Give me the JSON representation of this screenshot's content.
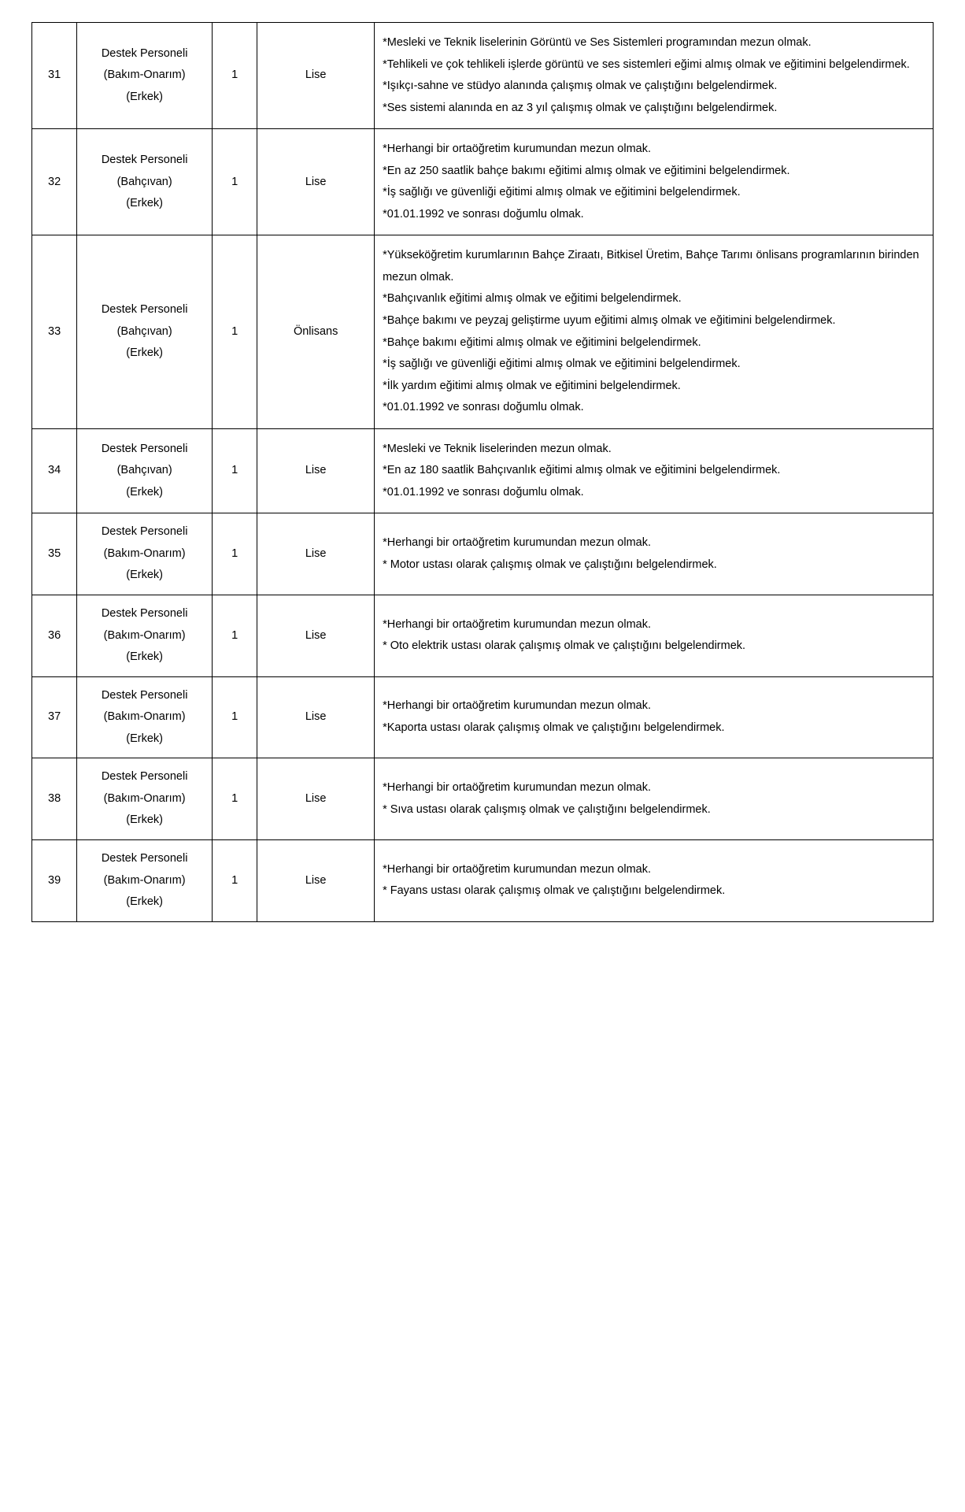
{
  "columns": [
    "idx",
    "title",
    "count",
    "level",
    "requirements"
  ],
  "col_widths_pct": [
    5,
    15,
    5,
    13,
    62
  ],
  "border_color": "#000000",
  "background_color": "#ffffff",
  "text_color": "#000000",
  "font_size_pt": 11,
  "line_height": 1.9,
  "rows": [
    {
      "idx": "31",
      "title": [
        "Destek Personeli",
        "(Bakım-Onarım)",
        "(Erkek)"
      ],
      "count": "1",
      "level": "Lise",
      "requirements": [
        "*Mesleki ve Teknik liselerinin Görüntü ve Ses Sistemleri programından mezun olmak.",
        "*Tehlikeli ve çok tehlikeli işlerde görüntü ve ses sistemleri eğimi almış olmak ve eğitimini belgelendirmek.",
        "*Işıkçı-sahne ve stüdyo alanında çalışmış olmak ve çalıştığını belgelendirmek.",
        "*Ses sistemi alanında en az 3 yıl çalışmış olmak ve çalıştığını belgelendirmek."
      ]
    },
    {
      "idx": "32",
      "title": [
        "Destek Personeli",
        "(Bahçıvan)",
        "(Erkek)"
      ],
      "count": "1",
      "level": "Lise",
      "requirements": [
        "*Herhangi bir ortaöğretim kurumundan mezun olmak.",
        "*En az 250 saatlik bahçe bakımı eğitimi almış olmak ve eğitimini belgelendirmek.",
        "*İş sağlığı ve güvenliği eğitimi almış olmak ve eğitimini belgelendirmek.",
        "*01.01.1992 ve sonrası doğumlu olmak."
      ]
    },
    {
      "idx": "33",
      "title": [
        "Destek Personeli",
        "(Bahçıvan)",
        "(Erkek)"
      ],
      "count": "1",
      "level": "Önlisans",
      "requirements": [
        "*Yükseköğretim kurumlarının Bahçe Ziraatı, Bitkisel Üretim, Bahçe Tarımı önlisans programlarının birinden mezun olmak.",
        "*Bahçıvanlık eğitimi almış olmak ve eğitimi belgelendirmek.",
        "*Bahçe bakımı ve peyzaj geliştirme uyum eğitimi almış olmak ve eğitimini belgelendirmek.",
        "*Bahçe bakımı eğitimi almış olmak ve eğitimini belgelendirmek.",
        "*İş sağlığı ve güvenliği eğitimi almış olmak ve eğitimini belgelendirmek.",
        "*İlk yardım eğitimi almış olmak ve eğitimini belgelendirmek.",
        "*01.01.1992 ve sonrası doğumlu olmak."
      ]
    },
    {
      "idx": "34",
      "title": [
        "Destek Personeli",
        "(Bahçıvan)",
        "(Erkek)"
      ],
      "count": "1",
      "level": "Lise",
      "requirements": [
        "*Mesleki ve Teknik liselerinden mezun olmak.",
        "*En az 180 saatlik Bahçıvanlık eğitimi almış olmak ve eğitimini belgelendirmek.",
        "*01.01.1992 ve sonrası doğumlu olmak."
      ]
    },
    {
      "idx": "35",
      "title": [
        "Destek Personeli",
        "(Bakım-Onarım)",
        "(Erkek)"
      ],
      "count": "1",
      "level": "Lise",
      "requirements": [
        "*Herhangi bir ortaöğretim kurumundan mezun olmak.",
        "* Motor ustası olarak çalışmış olmak ve çalıştığını belgelendirmek."
      ]
    },
    {
      "idx": "36",
      "title": [
        "Destek Personeli",
        "(Bakım-Onarım)",
        "(Erkek)"
      ],
      "count": "1",
      "level": "Lise",
      "requirements": [
        "*Herhangi bir ortaöğretim kurumundan mezun olmak.",
        "* Oto elektrik ustası olarak çalışmış olmak ve çalıştığını belgelendirmek."
      ]
    },
    {
      "idx": "37",
      "title": [
        "Destek Personeli",
        "(Bakım-Onarım)",
        "(Erkek)"
      ],
      "count": "1",
      "level": "Lise",
      "requirements": [
        "*Herhangi bir ortaöğretim kurumundan mezun olmak.",
        "*Kaporta ustası olarak çalışmış olmak ve çalıştığını belgelendirmek."
      ]
    },
    {
      "idx": "38",
      "title": [
        "Destek Personeli",
        "(Bakım-Onarım)",
        "(Erkek)"
      ],
      "count": "1",
      "level": "Lise",
      "requirements": [
        "*Herhangi bir ortaöğretim kurumundan mezun olmak.",
        "* Sıva ustası olarak çalışmış olmak ve çalıştığını belgelendirmek."
      ]
    },
    {
      "idx": "39",
      "title": [
        "Destek Personeli",
        "(Bakım-Onarım)",
        "(Erkek)"
      ],
      "count": "1",
      "level": "Lise",
      "requirements": [
        "*Herhangi bir ortaöğretim kurumundan mezun olmak.",
        "* Fayans ustası olarak çalışmış olmak ve çalıştığını belgelendirmek."
      ]
    }
  ]
}
